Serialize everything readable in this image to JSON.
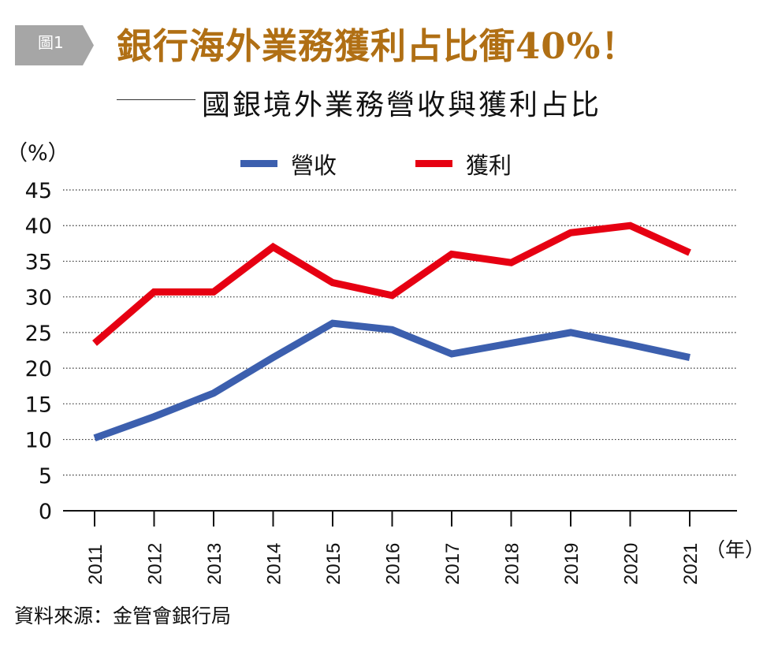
{
  "header": {
    "badge": "圖1",
    "title": "銀行海外業務獲利占比衝40%！",
    "subtitle": "國銀境外業務營收與獲利占比"
  },
  "footer": {
    "source": "資料來源：金管會銀行局"
  },
  "colors": {
    "title": "#b06f14",
    "badge": "#a6a6a6",
    "revenue": "#3c5fae",
    "profit": "#e60012"
  },
  "chart_data": {
    "type": "line",
    "title": "國銀境外業務營收與獲利占比",
    "xlabel": "（年）",
    "ylabel": "（%）",
    "ylim": [
      0,
      45
    ],
    "yticks": [
      "0",
      "5",
      "10",
      "15",
      "20",
      "25",
      "30",
      "35",
      "40",
      "45"
    ],
    "categories": [
      "2011",
      "2012",
      "2013",
      "2014",
      "2015",
      "2016",
      "2017",
      "2018",
      "2019",
      "2020",
      "2021"
    ],
    "grid": "horizontal-dotted",
    "legend": "top-center",
    "series": [
      {
        "name": "營收",
        "color": "#3c5fae",
        "values": [
          10.2,
          13.2,
          16.5,
          21.5,
          26.3,
          25.4,
          22.0,
          23.5,
          25.0,
          23.3,
          21.5
        ]
      },
      {
        "name": "獲利",
        "color": "#e60012",
        "values": [
          23.5,
          30.7,
          30.7,
          37.0,
          32.0,
          30.2,
          36.0,
          34.8,
          39.0,
          40.0,
          36.2
        ]
      }
    ]
  }
}
